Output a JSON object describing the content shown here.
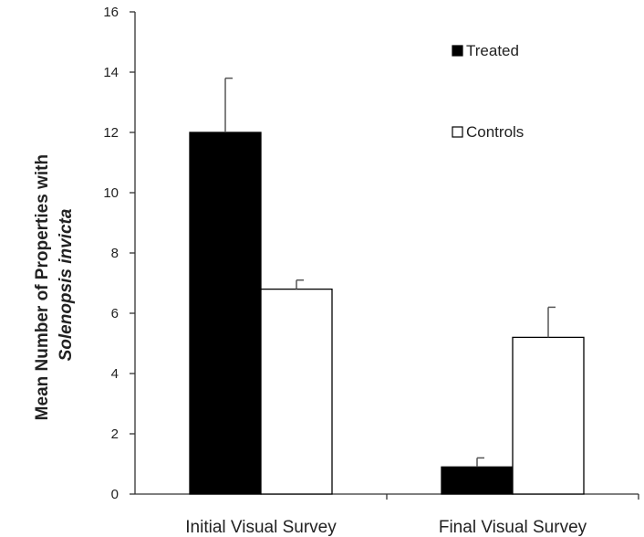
{
  "chart_data": {
    "type": "bar",
    "categories": [
      "Initial Visual Survey",
      "Final Visual Survey"
    ],
    "series": [
      {
        "name": "Treated",
        "values": [
          12.0,
          0.9
        ],
        "errors": [
          1.8,
          0.3
        ],
        "color": "#000000"
      },
      {
        "name": "Controls",
        "values": [
          6.8,
          5.2
        ],
        "errors": [
          0.3,
          1.0
        ],
        "color": "#ffffff"
      }
    ],
    "ylabel_line1": "Mean Number of Properties with",
    "ylabel_line2": "Solenopsis invicta",
    "ylim": [
      0,
      16
    ],
    "yticks": [
      0,
      2,
      4,
      6,
      8,
      10,
      12,
      14,
      16
    ],
    "legend_position": "top-right",
    "grid": false
  }
}
